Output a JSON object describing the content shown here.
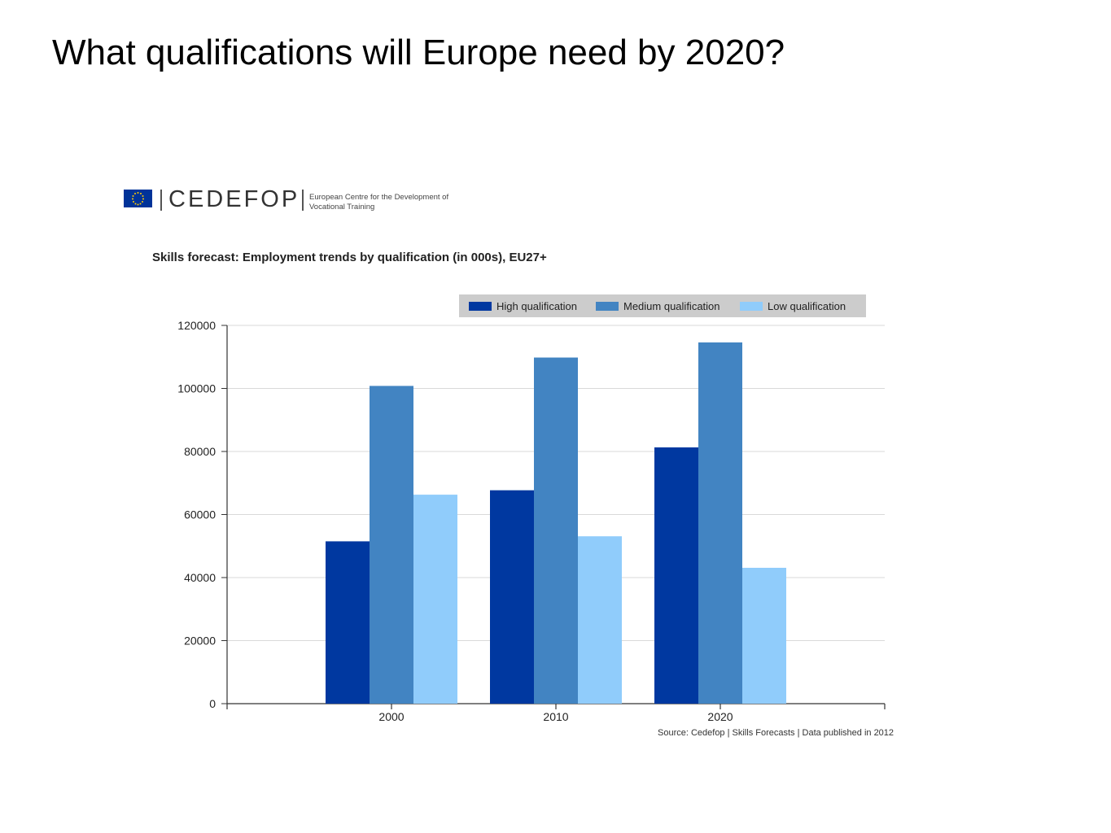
{
  "slide": {
    "title": "What qualifications will Europe need by 2020?"
  },
  "logo": {
    "wordmark": "CEDEFOP",
    "org_name": "European Centre for the Development of Vocational Training",
    "flag_icon": "eu-flag-icon"
  },
  "source_note": "Source: Cedefop | Skills Forecasts | Data published in 2012",
  "colors": {
    "high": "#0038a0",
    "medium": "#4284c2",
    "low": "#90ccfb",
    "legend_bg": "#cccccc",
    "grid": "#d9d9d9"
  },
  "chart_data": {
    "type": "bar",
    "title": "Skills forecast: Employment trends by qualification (in 000s), EU27+",
    "xlabel": "",
    "ylabel": "",
    "categories": [
      "2000",
      "2010",
      "2020"
    ],
    "series": [
      {
        "name": "High qualification",
        "values": [
          51500,
          67700,
          81300
        ]
      },
      {
        "name": "Medium qualification",
        "values": [
          100800,
          109800,
          114600
        ]
      },
      {
        "name": "Low qualification",
        "values": [
          66300,
          53100,
          43100
        ]
      }
    ],
    "ylim": [
      0,
      120000
    ],
    "yticks": [
      0,
      20000,
      40000,
      60000,
      80000,
      100000,
      120000
    ],
    "grid": true,
    "legend_position": "top-right"
  }
}
